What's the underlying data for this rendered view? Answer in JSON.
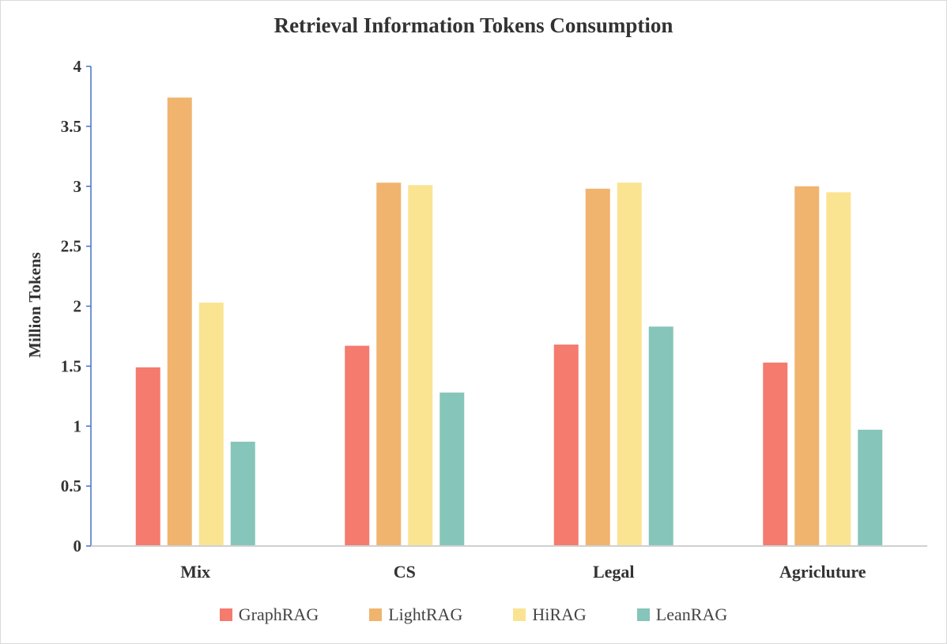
{
  "chart_data": {
    "type": "bar",
    "title": "Retrieval Information Tokens Consumption",
    "xlabel": "",
    "ylabel": "Million Tokens",
    "categories": [
      "Mix",
      "CS",
      "Legal",
      "Agricluture"
    ],
    "ylim": [
      0,
      4
    ],
    "yticks": [
      "0",
      "0.5",
      "1",
      "1.5",
      "2",
      "2.5",
      "3",
      "3.5",
      "4"
    ],
    "grid": false,
    "legend_position": "bottom",
    "series": [
      {
        "name": "GraphRAG",
        "color": "#F47B6E",
        "values": [
          1.49,
          1.67,
          1.68,
          1.53
        ]
      },
      {
        "name": "LightRAG",
        "color": "#F0B46E",
        "values": [
          3.74,
          3.03,
          2.98,
          3.0
        ]
      },
      {
        "name": "HiRAG",
        "color": "#FAE492",
        "values": [
          2.03,
          3.01,
          3.03,
          2.95
        ]
      },
      {
        "name": "LeanRAG",
        "color": "#86C5B9",
        "values": [
          0.87,
          1.28,
          1.83,
          0.97
        ]
      }
    ]
  }
}
